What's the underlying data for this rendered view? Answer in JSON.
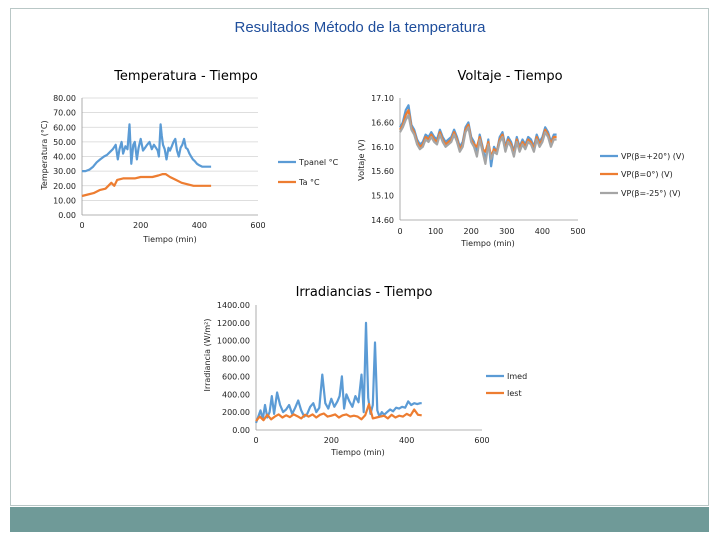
{
  "page": {
    "title": "Resultados Método de la temperatura"
  },
  "colors": {
    "blue": "#5b9bd5",
    "orange": "#ed7d31",
    "gray": "#a5a5a5",
    "bar": "#6f9a98",
    "title": "#1f4e9c"
  },
  "chart_data": [
    {
      "id": "temp",
      "type": "line",
      "title": "Temperatura - Tiempo",
      "xlabel": "Tiempo (min)",
      "ylabel": "Temperatura (°C)",
      "xlim": [
        0,
        600
      ],
      "ylim": [
        0,
        80
      ],
      "xticks": [
        "0",
        "200",
        "400",
        "600"
      ],
      "yticks": [
        "0.00",
        "10.00",
        "20.00",
        "30.00",
        "40.00",
        "50.00",
        "60.00",
        "70.00",
        "80.00"
      ],
      "grid": true,
      "legend_position": "right",
      "series": [
        {
          "name": "Tpanel °C",
          "color": "#5b9bd5",
          "x": [
            0,
            12,
            25,
            38,
            50,
            62,
            75,
            85,
            95,
            105,
            115,
            122,
            128,
            135,
            140,
            148,
            155,
            162,
            168,
            175,
            180,
            187,
            193,
            200,
            208,
            215,
            222,
            230,
            238,
            245,
            252,
            258,
            262,
            268,
            272,
            276,
            282,
            288,
            295,
            300,
            306,
            312,
            318,
            324,
            330,
            336,
            342,
            348,
            354,
            360,
            366,
            372,
            378,
            384,
            392,
            400,
            410,
            420,
            430,
            440
          ],
          "y": [
            30,
            30,
            31,
            33,
            36,
            38,
            40,
            41,
            43,
            45,
            48,
            38,
            45,
            50,
            42,
            47,
            45,
            62,
            35,
            48,
            50,
            38,
            46,
            52,
            44,
            46,
            48,
            50,
            45,
            48,
            46,
            44,
            40,
            62,
            54,
            48,
            45,
            38,
            46,
            44,
            47,
            50,
            52,
            44,
            40,
            46,
            48,
            52,
            46,
            45,
            42,
            40,
            38,
            37,
            35,
            34,
            33,
            33,
            33,
            33
          ]
        },
        {
          "name": "Ta °C",
          "color": "#ed7d31",
          "x": [
            0,
            20,
            40,
            60,
            80,
            100,
            110,
            120,
            140,
            160,
            180,
            200,
            220,
            240,
            260,
            275,
            285,
            300,
            320,
            340,
            360,
            380,
            400,
            420,
            440
          ],
          "y": [
            13,
            14,
            15,
            17,
            18,
            22,
            20,
            24,
            25,
            25,
            25,
            26,
            26,
            26,
            27,
            28,
            28,
            26,
            24,
            22,
            21,
            20,
            20,
            20,
            20
          ]
        }
      ]
    },
    {
      "id": "volt",
      "type": "line",
      "title": "Voltaje - Tiempo",
      "xlabel": "Tiempo (min)",
      "ylabel": "Voltaje (V)",
      "xlim": [
        0,
        500
      ],
      "ylim": [
        14.6,
        17.1
      ],
      "xticks": [
        "0",
        "100",
        "200",
        "300",
        "400",
        "500"
      ],
      "yticks": [
        "14.60",
        "15.10",
        "15.60",
        "16.10",
        "16.60",
        "17.10"
      ],
      "grid": false,
      "legend_position": "right",
      "series": [
        {
          "name": "VP(β=+20°) (V)",
          "color": "#5b9bd5",
          "x": [
            0,
            8,
            16,
            24,
            32,
            40,
            48,
            56,
            64,
            72,
            80,
            88,
            96,
            104,
            112,
            120,
            128,
            136,
            144,
            152,
            160,
            168,
            176,
            184,
            192,
            200,
            208,
            216,
            224,
            232,
            240,
            248,
            256,
            264,
            272,
            280,
            288,
            296,
            304,
            312,
            320,
            328,
            336,
            344,
            352,
            360,
            368,
            376,
            384,
            392,
            400,
            408,
            416,
            424,
            432,
            440
          ],
          "y": [
            16.5,
            16.6,
            16.85,
            16.95,
            16.55,
            16.45,
            16.25,
            16.15,
            16.2,
            16.35,
            16.3,
            16.4,
            16.3,
            16.25,
            16.45,
            16.3,
            16.2,
            16.25,
            16.3,
            16.45,
            16.3,
            16.1,
            16.2,
            16.5,
            16.6,
            16.3,
            16.2,
            15.95,
            16.35,
            16.1,
            15.8,
            16.25,
            15.7,
            16.1,
            16.0,
            16.3,
            16.4,
            16.1,
            16.3,
            16.2,
            16.0,
            16.3,
            16.1,
            16.25,
            16.15,
            16.3,
            16.25,
            16.1,
            16.35,
            16.2,
            16.3,
            16.5,
            16.4,
            16.2,
            16.35,
            16.35
          ]
        },
        {
          "name": "VP(β=0°) (V)",
          "color": "#ed7d31",
          "x": [
            0,
            8,
            16,
            24,
            32,
            40,
            48,
            56,
            64,
            72,
            80,
            88,
            96,
            104,
            112,
            120,
            128,
            136,
            144,
            152,
            160,
            168,
            176,
            184,
            192,
            200,
            208,
            216,
            224,
            232,
            240,
            248,
            256,
            264,
            272,
            280,
            288,
            296,
            304,
            312,
            320,
            328,
            336,
            344,
            352,
            360,
            368,
            376,
            384,
            392,
            400,
            408,
            416,
            424,
            432,
            440
          ],
          "y": [
            16.45,
            16.55,
            16.75,
            16.85,
            16.5,
            16.4,
            16.2,
            16.1,
            16.15,
            16.3,
            16.25,
            16.35,
            16.25,
            16.2,
            16.4,
            16.25,
            16.15,
            16.2,
            16.25,
            16.4,
            16.25,
            16.05,
            16.15,
            16.45,
            16.55,
            16.25,
            16.15,
            16.1,
            16.3,
            16.05,
            16.0,
            16.2,
            15.9,
            16.05,
            16.0,
            16.25,
            16.35,
            16.05,
            16.25,
            16.15,
            15.95,
            16.25,
            16.05,
            16.2,
            16.1,
            16.25,
            16.2,
            16.05,
            16.3,
            16.15,
            16.25,
            16.45,
            16.35,
            16.15,
            16.3,
            16.3
          ]
        },
        {
          "name": "VP(β=-25°) (V)",
          "color": "#a5a5a5",
          "x": [
            0,
            8,
            16,
            24,
            32,
            40,
            48,
            56,
            64,
            72,
            80,
            88,
            96,
            104,
            112,
            120,
            128,
            136,
            144,
            152,
            160,
            168,
            176,
            184,
            192,
            200,
            208,
            216,
            224,
            232,
            240,
            248,
            256,
            264,
            272,
            280,
            288,
            296,
            304,
            312,
            320,
            328,
            336,
            344,
            352,
            360,
            368,
            376,
            384,
            392,
            400,
            408,
            416,
            424,
            432,
            440
          ],
          "y": [
            16.4,
            16.5,
            16.65,
            16.75,
            16.45,
            16.35,
            16.15,
            16.05,
            16.1,
            16.25,
            16.2,
            16.3,
            16.2,
            16.15,
            16.35,
            16.2,
            16.1,
            16.15,
            16.2,
            16.35,
            16.2,
            16.0,
            16.1,
            16.4,
            16.5,
            16.2,
            16.1,
            15.9,
            16.25,
            16.0,
            15.75,
            16.15,
            15.85,
            16.0,
            15.95,
            16.2,
            16.3,
            16.0,
            16.2,
            16.1,
            15.9,
            16.2,
            16.0,
            16.15,
            16.05,
            16.2,
            16.15,
            16.0,
            16.25,
            16.1,
            16.2,
            16.4,
            16.3,
            16.1,
            16.25,
            16.25
          ]
        }
      ]
    },
    {
      "id": "irr",
      "type": "line",
      "title": "Irradiancias - Tiempo",
      "xlabel": "Tiempo (min)",
      "ylabel": "Irradiancia (W/m²)",
      "xlim": [
        0,
        600
      ],
      "ylim": [
        0,
        1400
      ],
      "xticks": [
        "0",
        "200",
        "400",
        "600"
      ],
      "yticks": [
        "0.00",
        "200.00",
        "400.00",
        "600.00",
        "800.00",
        "1000.00",
        "1200.00",
        "1400.00"
      ],
      "grid": false,
      "legend_position": "right",
      "series": [
        {
          "name": "Imed",
          "color": "#5b9bd5",
          "x": [
            0,
            6,
            12,
            18,
            24,
            30,
            36,
            42,
            48,
            56,
            64,
            72,
            80,
            88,
            96,
            104,
            112,
            120,
            128,
            136,
            144,
            152,
            160,
            168,
            176,
            184,
            192,
            200,
            208,
            216,
            222,
            228,
            234,
            240,
            248,
            256,
            264,
            272,
            280,
            286,
            292,
            298,
            304,
            310,
            316,
            322,
            328,
            334,
            340,
            348,
            356,
            364,
            372,
            380,
            388,
            396,
            404,
            412,
            420,
            428,
            436,
            440
          ],
          "y": [
            80,
            150,
            220,
            120,
            280,
            140,
            200,
            380,
            180,
            420,
            280,
            200,
            230,
            280,
            180,
            250,
            330,
            220,
            150,
            180,
            260,
            300,
            200,
            250,
            620,
            300,
            240,
            350,
            260,
            320,
            380,
            600,
            240,
            400,
            320,
            260,
            380,
            310,
            620,
            200,
            1200,
            360,
            180,
            280,
            980,
            220,
            150,
            200,
            170,
            200,
            230,
            210,
            250,
            240,
            260,
            250,
            320,
            280,
            300,
            290,
            300,
            300
          ]
        },
        {
          "name": "Iest",
          "color": "#ed7d31",
          "x": [
            0,
            10,
            20,
            30,
            40,
            50,
            60,
            70,
            80,
            90,
            100,
            110,
            120,
            130,
            140,
            150,
            160,
            170,
            180,
            190,
            200,
            210,
            220,
            230,
            240,
            250,
            260,
            270,
            280,
            290,
            300,
            310,
            320,
            330,
            340,
            350,
            360,
            370,
            380,
            390,
            400,
            410,
            420,
            430,
            440
          ],
          "y": [
            100,
            150,
            110,
            170,
            120,
            150,
            175,
            140,
            165,
            145,
            175,
            155,
            130,
            170,
            150,
            175,
            140,
            170,
            185,
            150,
            160,
            175,
            140,
            165,
            175,
            150,
            160,
            150,
            120,
            165,
            290,
            130,
            140,
            150,
            160,
            130,
            170,
            140,
            160,
            150,
            180,
            160,
            230,
            170,
            165
          ]
        }
      ]
    }
  ]
}
